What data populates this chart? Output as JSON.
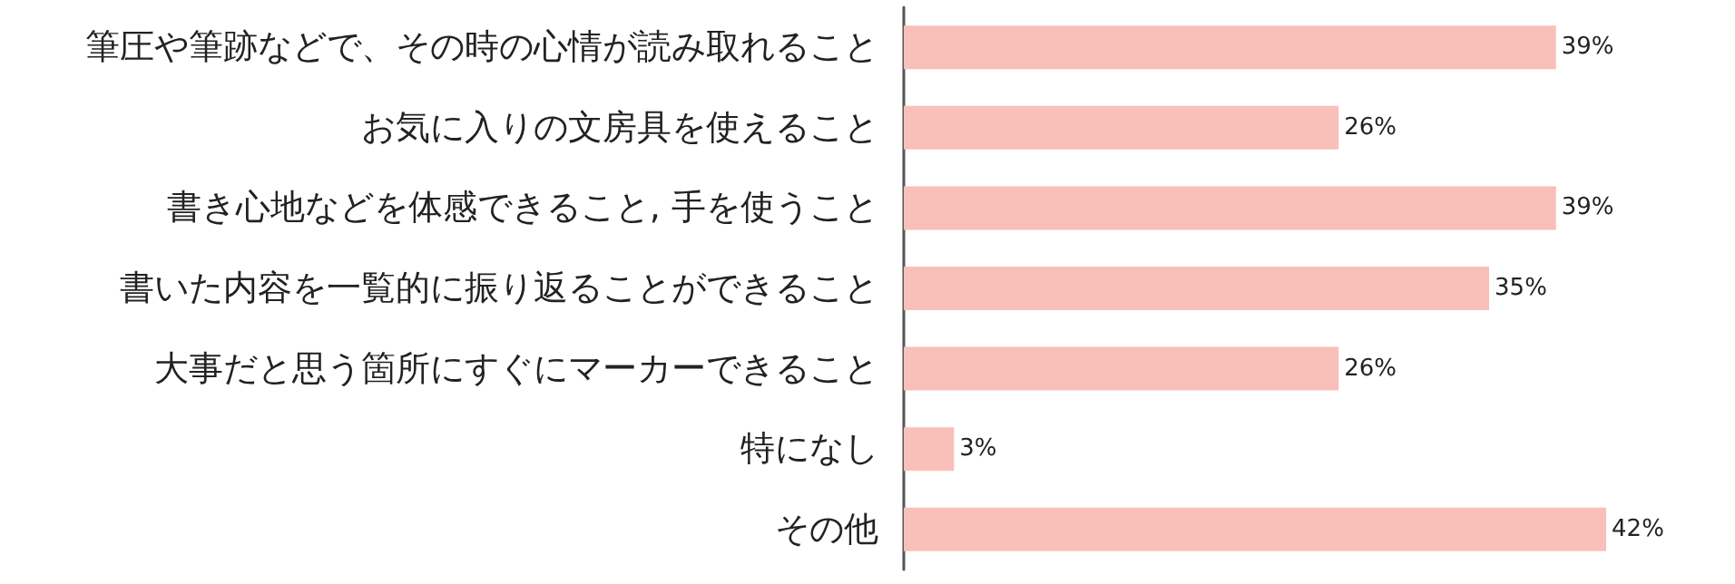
{
  "chart_data": {
    "type": "bar",
    "orientation": "horizontal",
    "categories": [
      "筆圧や筆跡などで、その時の心情が読み取れること",
      "お気に入りの文房具を使えること",
      "書き心地などを体感できること, 手を使うこと",
      "書いた内容を一覧的に振り返ることができること",
      "大事だと思う箇所にすぐにマーカーできること",
      "特になし",
      "その他"
    ],
    "values": [
      39,
      26,
      39,
      35,
      26,
      3,
      42
    ],
    "value_labels": [
      "39%",
      "26%",
      "39%",
      "35%",
      "26%",
      "3%",
      "42%"
    ],
    "color": "#f8c0b8"
  }
}
